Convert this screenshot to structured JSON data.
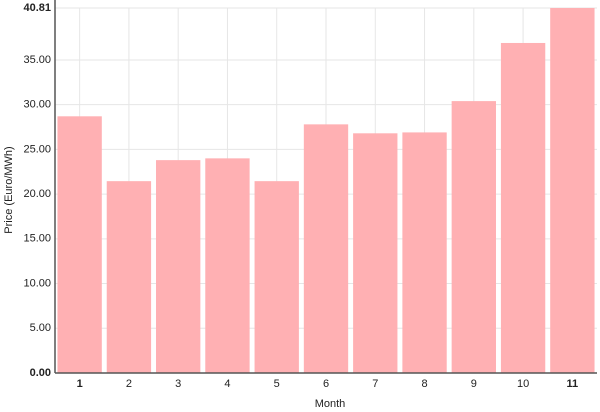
{
  "chart_data": {
    "type": "bar",
    "x_label": "Month",
    "y_label": "Price (Euro/MWh)",
    "categories": [
      "1",
      "2",
      "3",
      "4",
      "5",
      "6",
      "7",
      "8",
      "9",
      "10",
      "11"
    ],
    "values": [
      28.7,
      21.45,
      23.8,
      24.0,
      21.45,
      27.8,
      26.8,
      26.9,
      30.4,
      36.9,
      40.81
    ],
    "color": "#ffb0b3",
    "ylim": [
      0,
      40.81
    ],
    "yticks": [
      {
        "value": 0,
        "label": "0.00"
      },
      {
        "value": 5,
        "label": "5.00"
      },
      {
        "value": 10,
        "label": "10.00"
      },
      {
        "value": 15,
        "label": "15.00"
      },
      {
        "value": 20,
        "label": "20.00"
      },
      {
        "value": 25,
        "label": "25.00"
      },
      {
        "value": 30,
        "label": "30.00"
      },
      {
        "value": 35,
        "label": "35.00"
      },
      {
        "value": 40.81,
        "label": "40.81"
      }
    ],
    "grid": true
  }
}
